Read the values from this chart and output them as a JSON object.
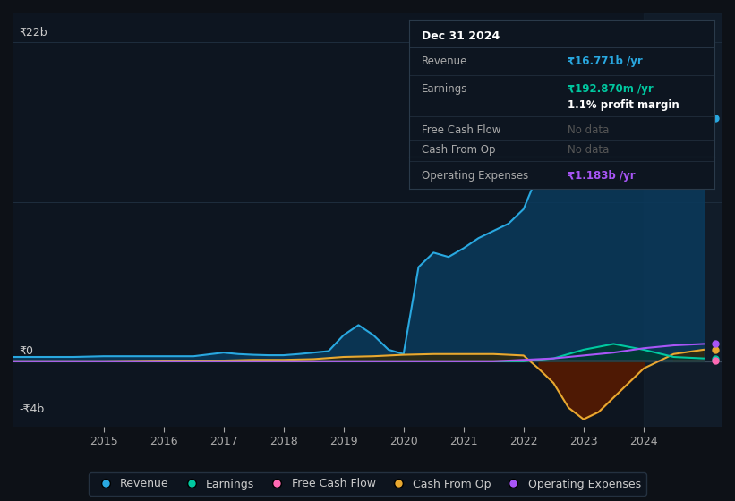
{
  "bg_color": "#0d1117",
  "chart_bg": "#0d1520",
  "grid_color": "#1e2d3d",
  "ylabel_22b": "₹22b",
  "ylabel_0": "₹0",
  "ylabel_neg4b": "-₹4b",
  "x_ticks": [
    2015,
    2016,
    2017,
    2018,
    2019,
    2020,
    2021,
    2022,
    2023,
    2024
  ],
  "x_min": 2013.5,
  "x_max": 2025.3,
  "y_min": -4.5,
  "y_max": 24,
  "revenue_color": "#29a8e0",
  "revenue_fill": "#0a3a5c",
  "earnings_color": "#00c8a0",
  "earnings_fill": "#003a30",
  "cashflow_color": "#ff69b4",
  "cashop_color": "#e8a830",
  "cashop_fill_pos": "#3a2800",
  "cashop_fill_neg": "#4a1500",
  "opex_color": "#a855f7",
  "tooltip_bg": "#0d1520",
  "tooltip_border": "#2a3a4a",
  "tooltip_title": "Dec 31 2024",
  "tooltip_revenue_label": "Revenue",
  "tooltip_revenue_value": "₹16.771b /yr",
  "tooltip_earnings_label": "Earnings",
  "tooltip_earnings_value": "₹192.870m /yr",
  "tooltip_margin": "1.1% profit margin",
  "tooltip_fcf_label": "Free Cash Flow",
  "tooltip_fcf_value": "No data",
  "tooltip_cashop_label": "Cash From Op",
  "tooltip_cashop_value": "No data",
  "tooltip_opex_label": "Operating Expenses",
  "tooltip_opex_value": "₹1.183b /yr",
  "legend_items": [
    "Revenue",
    "Earnings",
    "Free Cash Flow",
    "Cash From Op",
    "Operating Expenses"
  ],
  "legend_colors": [
    "#29a8e0",
    "#00c8a0",
    "#ff69b4",
    "#e8a830",
    "#a855f7"
  ],
  "revenue_x": [
    2013.5,
    2014,
    2014.5,
    2015,
    2015.5,
    2016,
    2016.5,
    2017,
    2017.25,
    2017.5,
    2017.75,
    2018,
    2018.25,
    2018.5,
    2018.75,
    2019,
    2019.25,
    2019.5,
    2019.75,
    2020,
    2020.25,
    2020.5,
    2020.75,
    2021,
    2021.25,
    2021.5,
    2021.75,
    2022,
    2022.25,
    2022.5,
    2022.75,
    2023,
    2023.25,
    2023.5,
    2023.75,
    2024,
    2024.25,
    2024.5,
    2024.75,
    2025
  ],
  "revenue_y": [
    0.3,
    0.3,
    0.3,
    0.35,
    0.35,
    0.35,
    0.35,
    0.6,
    0.5,
    0.45,
    0.42,
    0.42,
    0.5,
    0.6,
    0.7,
    1.8,
    2.5,
    1.8,
    0.8,
    0.5,
    6.5,
    7.5,
    7.2,
    7.8,
    8.5,
    9.0,
    9.5,
    10.5,
    13.0,
    15.5,
    17.0,
    20.0,
    21.5,
    22.5,
    21.0,
    19.5,
    18.0,
    17.5,
    16.8,
    16.8
  ],
  "earnings_x": [
    2013.5,
    2014,
    2015,
    2016,
    2017,
    2018,
    2019,
    2020,
    2021,
    2021.5,
    2022,
    2022.5,
    2023,
    2023.25,
    2023.5,
    2023.75,
    2024,
    2024.5,
    2025
  ],
  "earnings_y": [
    0.0,
    0.0,
    0.0,
    0.0,
    0.0,
    0.0,
    0.0,
    0.0,
    0.0,
    0.0,
    0.0,
    0.2,
    0.8,
    1.0,
    1.2,
    1.0,
    0.8,
    0.3,
    0.2
  ],
  "cashop_x": [
    2013.5,
    2014,
    2015,
    2016,
    2016.5,
    2017,
    2017.5,
    2018,
    2018.5,
    2019,
    2019.5,
    2020,
    2020.5,
    2021,
    2021.5,
    2022,
    2022.25,
    2022.5,
    2022.75,
    2023,
    2023.25,
    2023.5,
    2024,
    2024.5,
    2025
  ],
  "cashop_y": [
    0.0,
    0.0,
    0.0,
    0.05,
    0.05,
    0.05,
    0.1,
    0.1,
    0.15,
    0.3,
    0.35,
    0.45,
    0.5,
    0.5,
    0.5,
    0.4,
    -0.5,
    -1.5,
    -3.2,
    -4.0,
    -3.5,
    -2.5,
    -0.5,
    0.5,
    0.8
  ],
  "opex_x": [
    2013.5,
    2014,
    2015,
    2016,
    2017,
    2018,
    2019,
    2020,
    2021,
    2021.5,
    2022,
    2022.25,
    2022.5,
    2022.75,
    2023,
    2023.5,
    2024,
    2024.5,
    2025
  ],
  "opex_y": [
    0.0,
    0.0,
    0.0,
    0.0,
    0.0,
    0.0,
    0.0,
    0.0,
    0.0,
    0.0,
    0.1,
    0.15,
    0.2,
    0.3,
    0.4,
    0.6,
    0.9,
    1.1,
    1.2
  ],
  "fcf_x": [
    2013.5,
    2014,
    2015,
    2016,
    2017,
    2018,
    2019,
    2020,
    2021,
    2022,
    2023,
    2024,
    2025
  ],
  "fcf_y": [
    0.0,
    0.0,
    0.0,
    0.0,
    0.0,
    0.0,
    0.0,
    0.0,
    0.0,
    0.0,
    0.0,
    0.0,
    0.0
  ],
  "highlight_x": 2024.0,
  "highlight_x_end": 2025.3
}
